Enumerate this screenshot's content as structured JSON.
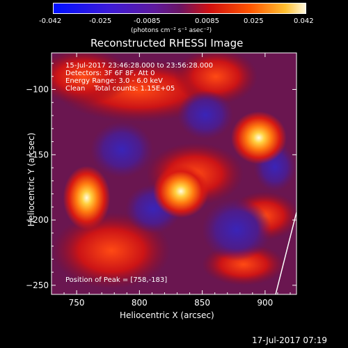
{
  "colorbar": {
    "ticks": [
      "-0.042",
      "-0.025",
      "-0.0085",
      "0.0085",
      "0.025",
      "0.042"
    ],
    "unit_label": "(photons cm⁻² s⁻¹ asec⁻²)"
  },
  "chart_data": {
    "type": "heatmap",
    "title": "Reconstructed RHESSI Image",
    "xlabel": "Heliocentric X (arcsec)",
    "ylabel": "Heliocentric Y (arcsec)",
    "xlim": [
      730,
      925
    ],
    "ylim": [
      -257,
      -72
    ],
    "xticks": [
      750,
      800,
      850,
      900
    ],
    "yticks": [
      -100,
      -150,
      -200,
      -250
    ],
    "colorbar_range": [
      -0.042,
      0.042
    ],
    "colormap": "hot (dark purple to yellow-white)",
    "sources": [
      {
        "x": 758,
        "y": -183,
        "peak": true
      },
      {
        "x": 833,
        "y": -178
      },
      {
        "x": 895,
        "y": -137
      }
    ],
    "info_lines": [
      "15-Jul-2017 23:46:28.000 to 23:56:28.000",
      "Detectors: 3F 6F 8F, Att 0",
      "Energy Range: 3.0 - 6.0 keV",
      "Clean    Total counts: 1.15E+05"
    ],
    "peak_label": "Position of Peak = [758,-183]",
    "timestamp": "17-Jul-2017 07:19"
  },
  "colors": {
    "background": "#000000",
    "text": "#ffffff"
  }
}
